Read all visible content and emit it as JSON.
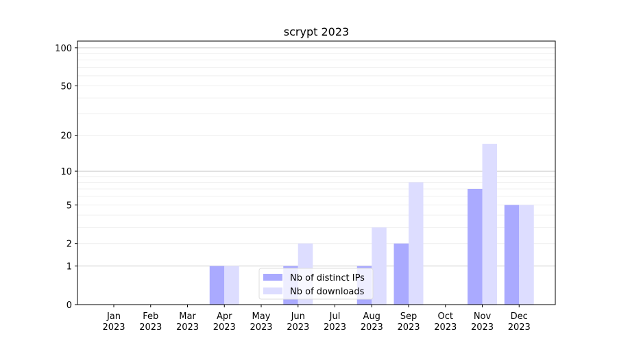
{
  "chart_data": {
    "type": "bar",
    "title": "scrypt 2023",
    "xlabel": "",
    "ylabel": "",
    "yscale": "log(1+y)",
    "ylim": [
      0,
      113
    ],
    "yticks": [
      0,
      1,
      2,
      5,
      10,
      20,
      50,
      100
    ],
    "grid": true,
    "legend_position": "lower-center",
    "categories": [
      "Jan\n2023",
      "Feb\n2023",
      "Mar\n2023",
      "Apr\n2023",
      "May\n2023",
      "Jun\n2023",
      "Jul\n2023",
      "Aug\n2023",
      "Sep\n2023",
      "Oct\n2023",
      "Nov\n2023",
      "Dec\n2023"
    ],
    "series": [
      {
        "name": "Nb of distinct IPs",
        "color": "#aaaaff",
        "values": [
          0,
          0,
          0,
          1,
          0,
          1,
          0,
          1,
          2,
          0,
          7,
          5
        ]
      },
      {
        "name": "Nb of downloads",
        "color": "#ddddff",
        "values": [
          0,
          0,
          0,
          1,
          0,
          2,
          0,
          3,
          8,
          0,
          17,
          5
        ]
      }
    ]
  }
}
